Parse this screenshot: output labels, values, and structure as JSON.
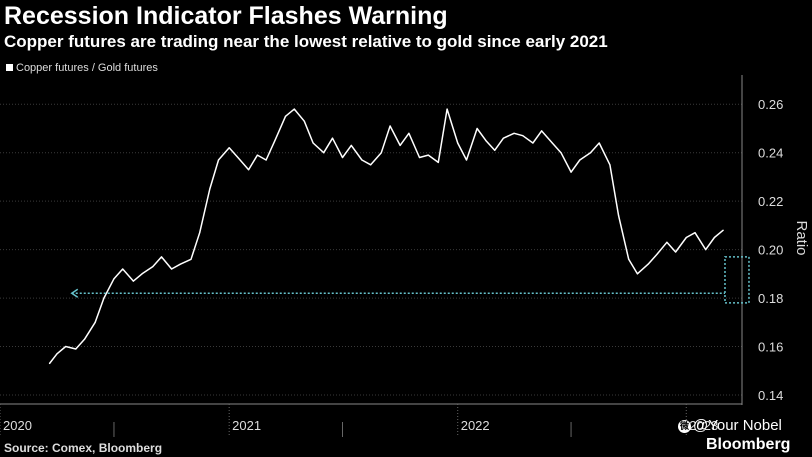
{
  "header": {
    "title": "Recession Indicator Flashes Warning",
    "subtitle": "Copper futures are trading near the lowest relative to gold since early 2021"
  },
  "footer": {
    "source": "Source: Comex, Bloomberg",
    "brand": "Bloomberg",
    "credit": "@Your Nobel"
  },
  "colors": {
    "background": "#000000",
    "line": "#ffffff",
    "grid": "#3a3a3a",
    "annotation": "#66c2cc"
  },
  "chart_data": {
    "type": "line",
    "title": "Recession Indicator Flashes Warning",
    "subtitle": "Copper futures are trading near the lowest relative to gold since early 2021",
    "ylabel": "Ratio",
    "ylim": [
      0.14,
      0.27
    ],
    "yticks": [
      0.14,
      0.16,
      0.18,
      0.2,
      0.22,
      0.24,
      0.26
    ],
    "ytick_labels": [
      "0.14",
      "0.16",
      "0.18",
      "0.20",
      "0.22",
      "0.24",
      "0.26"
    ],
    "xlim": [
      "2020-01-01",
      "2023-03-31"
    ],
    "xtick_labels": [
      {
        "label": "2020",
        "date": "2020-01-01"
      },
      {
        "label": "2021",
        "date": "2021-01-01"
      },
      {
        "label": "2022",
        "date": "2022-01-01"
      },
      {
        "label": "2023",
        "date": "2023-01-01"
      }
    ],
    "grid": true,
    "legend": "top-left",
    "series": [
      {
        "name": "Copper futures / Gold futures",
        "points": [
          [
            "2020-03-20",
            0.153
          ],
          [
            "2020-04-01",
            0.157
          ],
          [
            "2020-04-15",
            0.16
          ],
          [
            "2020-05-01",
            0.159
          ],
          [
            "2020-05-15",
            0.163
          ],
          [
            "2020-06-01",
            0.17
          ],
          [
            "2020-06-15",
            0.18
          ],
          [
            "2020-07-01",
            0.188
          ],
          [
            "2020-07-15",
            0.192
          ],
          [
            "2020-08-01",
            0.187
          ],
          [
            "2020-08-15",
            0.19
          ],
          [
            "2020-09-01",
            0.193
          ],
          [
            "2020-09-15",
            0.197
          ],
          [
            "2020-10-01",
            0.192
          ],
          [
            "2020-10-15",
            0.194
          ],
          [
            "2020-11-01",
            0.196
          ],
          [
            "2020-11-15",
            0.207
          ],
          [
            "2020-12-01",
            0.225
          ],
          [
            "2020-12-15",
            0.237
          ],
          [
            "2021-01-01",
            0.242
          ],
          [
            "2021-01-15",
            0.238
          ],
          [
            "2021-02-01",
            0.233
          ],
          [
            "2021-02-15",
            0.239
          ],
          [
            "2021-03-01",
            0.237
          ],
          [
            "2021-03-15",
            0.245
          ],
          [
            "2021-04-01",
            0.255
          ],
          [
            "2021-04-15",
            0.258
          ],
          [
            "2021-05-01",
            0.253
          ],
          [
            "2021-05-15",
            0.244
          ],
          [
            "2021-06-01",
            0.24
          ],
          [
            "2021-06-15",
            0.246
          ],
          [
            "2021-07-01",
            0.238
          ],
          [
            "2021-07-15",
            0.243
          ],
          [
            "2021-08-01",
            0.237
          ],
          [
            "2021-08-15",
            0.235
          ],
          [
            "2021-09-01",
            0.24
          ],
          [
            "2021-09-15",
            0.251
          ],
          [
            "2021-10-01",
            0.243
          ],
          [
            "2021-10-15",
            0.248
          ],
          [
            "2021-11-01",
            0.238
          ],
          [
            "2021-11-15",
            0.239
          ],
          [
            "2021-12-01",
            0.236
          ],
          [
            "2021-12-15",
            0.258
          ],
          [
            "2022-01-01",
            0.244
          ],
          [
            "2022-01-15",
            0.237
          ],
          [
            "2022-02-01",
            0.25
          ],
          [
            "2022-02-15",
            0.245
          ],
          [
            "2022-03-01",
            0.241
          ],
          [
            "2022-03-15",
            0.246
          ],
          [
            "2022-04-01",
            0.248
          ],
          [
            "2022-04-15",
            0.247
          ],
          [
            "2022-05-01",
            0.244
          ],
          [
            "2022-05-15",
            0.249
          ],
          [
            "2022-06-01",
            0.244
          ],
          [
            "2022-06-15",
            0.24
          ],
          [
            "2022-07-01",
            0.232
          ],
          [
            "2022-07-15",
            0.237
          ],
          [
            "2022-08-01",
            0.24
          ],
          [
            "2022-08-15",
            0.244
          ],
          [
            "2022-09-01",
            0.235
          ],
          [
            "2022-09-15",
            0.214
          ],
          [
            "2022-10-01",
            0.196
          ],
          [
            "2022-10-15",
            0.19
          ],
          [
            "2022-11-01",
            0.194
          ],
          [
            "2022-11-15",
            0.198
          ],
          [
            "2022-12-01",
            0.203
          ],
          [
            "2022-12-15",
            0.199
          ],
          [
            "2023-01-01",
            0.205
          ],
          [
            "2023-01-15",
            0.207
          ],
          [
            "2023-02-01",
            0.2
          ],
          [
            "2023-02-15",
            0.205
          ],
          [
            "2023-03-01",
            0.208
          ]
        ]
      }
    ],
    "annotation": {
      "type": "arrow-to-box",
      "level": 0.182,
      "from": "2020-04-15",
      "to": "2023-03-25",
      "box_ylim": [
        0.178,
        0.197
      ]
    }
  }
}
